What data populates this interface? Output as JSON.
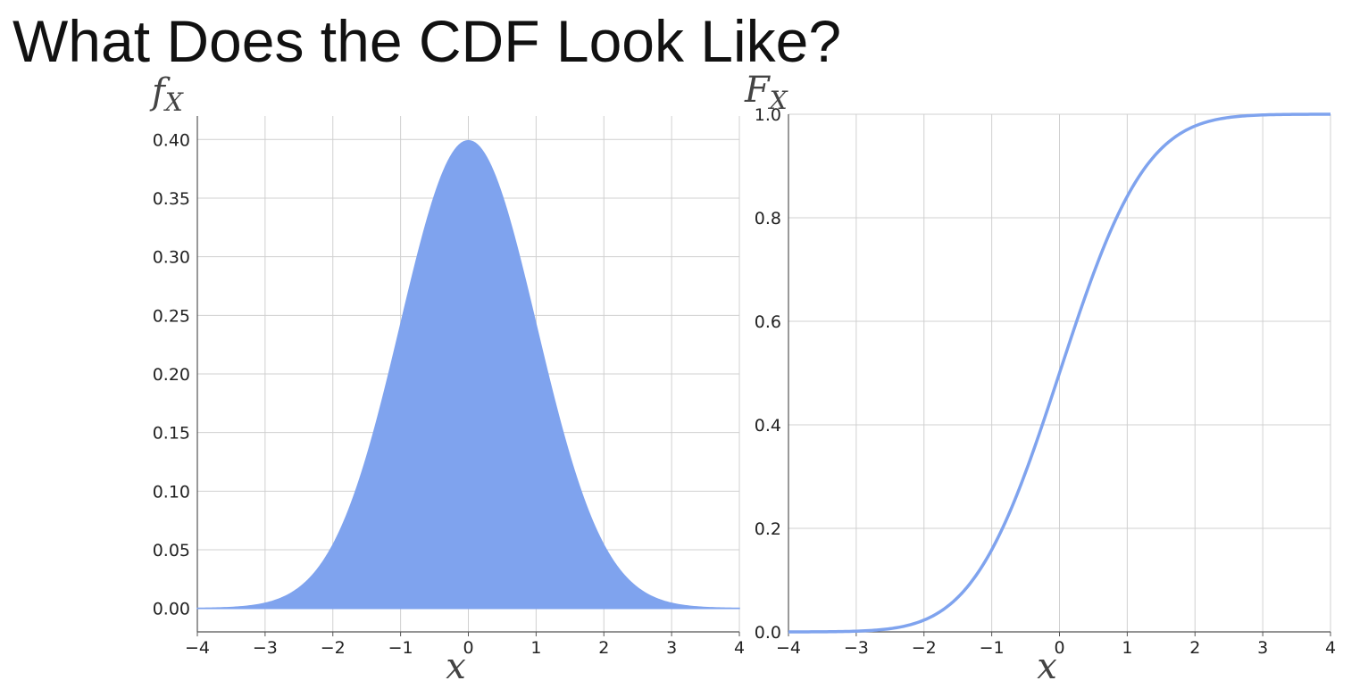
{
  "slide": {
    "title": "What Does the CDF Look Like?"
  },
  "colors": {
    "series": "#7fa3ee",
    "grid": "#d0d0d0",
    "axis": "#555555",
    "text": "#111111"
  },
  "chart_data": [
    {
      "type": "area",
      "function": "normal-pdf",
      "x_label": "x",
      "y_label_base": "f",
      "y_label_sub": "X",
      "xlim": [
        -4,
        4
      ],
      "ylim": [
        -0.02,
        0.42
      ],
      "x_ticks": [
        -4,
        -3,
        -2,
        -1,
        0,
        1,
        2,
        3,
        4
      ],
      "x_tick_labels": [
        "−4",
        "−3",
        "−2",
        "−1",
        "0",
        "1",
        "2",
        "3",
        "4"
      ],
      "y_ticks": [
        0.0,
        0.05,
        0.1,
        0.15,
        0.2,
        0.25,
        0.3,
        0.35,
        0.4
      ],
      "y_tick_labels": [
        "0.00",
        "0.05",
        "0.10",
        "0.15",
        "0.20",
        "0.25",
        "0.30",
        "0.35",
        "0.40"
      ],
      "grid": true,
      "x": [
        -4,
        -3.5,
        -3,
        -2.5,
        -2,
        -1.5,
        -1,
        -0.5,
        0,
        0.5,
        1,
        1.5,
        2,
        2.5,
        3,
        3.5,
        4
      ],
      "y": [
        0.0001,
        0.0009,
        0.0044,
        0.0175,
        0.054,
        0.1295,
        0.242,
        0.3521,
        0.3989,
        0.3521,
        0.242,
        0.1295,
        0.054,
        0.0175,
        0.0044,
        0.0009,
        0.0001
      ]
    },
    {
      "type": "line",
      "function": "normal-cdf",
      "x_label": "x",
      "y_label_base": "F",
      "y_label_sub": "X",
      "xlim": [
        -4,
        4
      ],
      "ylim": [
        0,
        1.0
      ],
      "x_ticks": [
        -4,
        -3,
        -2,
        -1,
        0,
        1,
        2,
        3,
        4
      ],
      "x_tick_labels": [
        "−4",
        "−3",
        "−2",
        "−1",
        "0",
        "1",
        "2",
        "3",
        "4"
      ],
      "y_ticks": [
        0.0,
        0.2,
        0.4,
        0.6,
        0.8,
        1.0
      ],
      "y_tick_labels": [
        "0.0",
        "0.2",
        "0.4",
        "0.6",
        "0.8",
        "1.0"
      ],
      "grid": true,
      "x": [
        -4,
        -3.5,
        -3,
        -2.5,
        -2,
        -1.5,
        -1,
        -0.5,
        0,
        0.5,
        1,
        1.5,
        2,
        2.5,
        3,
        3.5,
        4
      ],
      "y": [
        0.0,
        0.0002,
        0.0013,
        0.0062,
        0.0228,
        0.0668,
        0.1587,
        0.3085,
        0.5,
        0.6915,
        0.8413,
        0.9332,
        0.9772,
        0.9938,
        0.9987,
        0.9998,
        1.0
      ]
    }
  ]
}
